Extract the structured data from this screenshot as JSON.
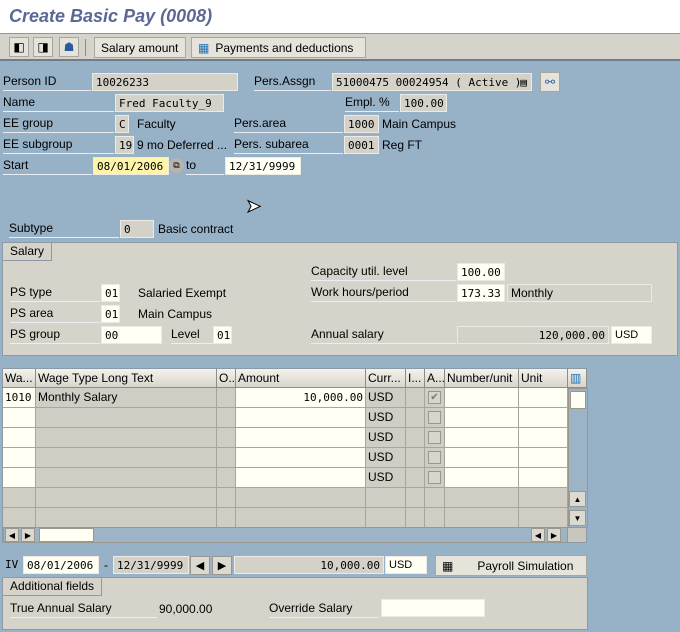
{
  "title": "Create Basic Pay (0008)",
  "toolbar": {
    "prev_icon": "previous-record-icon",
    "next_icon": "next-record-icon",
    "person_icon": "person-icon",
    "salary_amount": "Salary amount",
    "payments_deductions": "Payments and deductions"
  },
  "header": {
    "person_id_label": "Person ID",
    "person_id": "10026233",
    "pers_assgn_label": "Pers.Assgn",
    "pers_assgn": "51000475 00024954 ( Active )",
    "name_label": "Name",
    "name": "Fred Faculty_9",
    "empl_pct_label": "Empl. %",
    "empl_pct": "100.00",
    "ee_group_label": "EE group",
    "ee_group": "C",
    "ee_group_text": "Faculty",
    "pers_area_label": "Pers.area",
    "pers_area": "1000",
    "pers_area_text": "Main Campus",
    "ee_subgroup_label": "EE subgroup",
    "ee_subgroup": "19",
    "ee_subgroup_text": "9 mo Deferred ...",
    "pers_subarea_label": "Pers. subarea",
    "pers_subarea": "0001",
    "pers_subarea_text": "Reg FT",
    "start_label": "Start",
    "start": "08/01/2006",
    "to_label": "to",
    "end": "12/31/9999",
    "subtype_label": "Subtype",
    "subtype": "0",
    "subtype_text": "Basic contract"
  },
  "salary": {
    "tab": "Salary",
    "capacity_label": "Capacity util. level",
    "capacity": "100.00",
    "ps_type_label": "PS type",
    "ps_type": "01",
    "ps_type_text": "Salaried Exempt",
    "work_hours_label": "Work hours/period",
    "work_hours": "173.33",
    "work_period": "Monthly",
    "ps_area_label": "PS area",
    "ps_area": "01",
    "ps_area_text": "Main Campus",
    "ps_group_label": "PS group",
    "ps_group": "00",
    "level_label": "Level",
    "level": "01",
    "annual_label": "Annual salary",
    "annual": "120,000.00",
    "annual_curr": "USD"
  },
  "table": {
    "columns": [
      "Wa...",
      "Wage Type Long Text",
      "O..",
      "Amount",
      "Curr...",
      "I...",
      "A...",
      "Number/unit",
      "Unit"
    ],
    "rows": [
      {
        "wt": "1010",
        "text": "Monthly Salary",
        "amount": "10,000.00",
        "curr": "USD",
        "checked": true
      },
      {
        "wt": "",
        "text": "",
        "amount": "",
        "curr": "USD",
        "checked": false
      },
      {
        "wt": "",
        "text": "",
        "amount": "",
        "curr": "USD",
        "checked": false
      },
      {
        "wt": "",
        "text": "",
        "amount": "",
        "curr": "USD",
        "checked": false
      },
      {
        "wt": "",
        "text": "",
        "amount": "",
        "curr": "USD",
        "checked": false
      }
    ]
  },
  "footer": {
    "iv_label": "IV",
    "iv_start": "08/01/2006",
    "dash": "-",
    "iv_end": "12/31/9999",
    "total": "10,000.00",
    "total_curr": "USD",
    "payroll_sim": "Payroll Simulation"
  },
  "additional": {
    "tab": "Additional fields",
    "true_annual_label": "True Annual Salary",
    "true_annual": "90,000.00",
    "override_label": "Override Salary",
    "override": ""
  }
}
